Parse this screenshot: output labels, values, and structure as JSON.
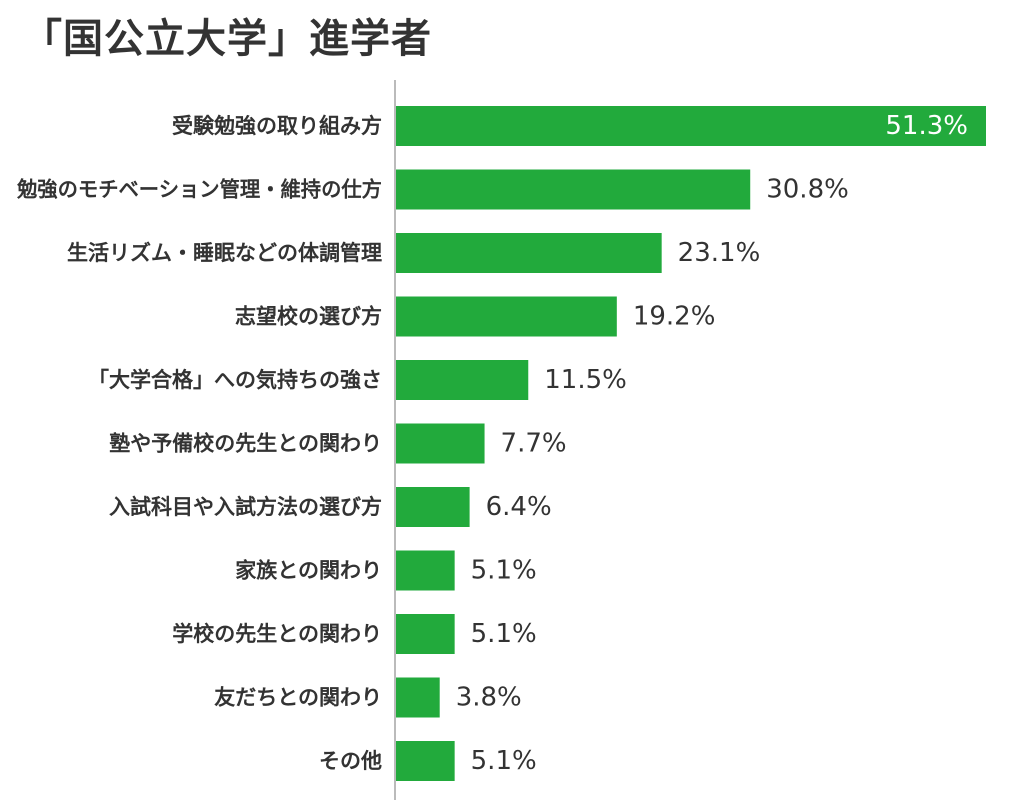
{
  "chart_data": {
    "type": "bar",
    "orientation": "horizontal",
    "title": "「国公立大学」進学者",
    "xlabel": "",
    "ylabel": "",
    "xlim": [
      0,
      51.3
    ],
    "grid": false,
    "bar_color": "#22aa3c",
    "unit": "%",
    "categories": [
      "受験勉強の取り組み方",
      "勉強のモチベーション管理・維持の仕方",
      "生活リズム・睡眠などの体調管理",
      "志望校の選び方",
      "「大学合格」への気持ちの強さ",
      "塾や予備校の先生との関わり",
      "入試科目や入試方法の選び方",
      "家族との関わり",
      "学校の先生との関わり",
      "友だちとの関わり",
      "その他"
    ],
    "values": [
      51.3,
      30.8,
      23.1,
      19.2,
      11.5,
      7.7,
      6.4,
      5.1,
      5.1,
      3.8,
      5.1
    ],
    "value_labels": [
      "51.3%",
      "30.8%",
      "23.1%",
      "19.2%",
      "11.5%",
      "7.7%",
      "6.4%",
      "5.1%",
      "5.1%",
      "3.8%",
      "5.1%"
    ]
  }
}
